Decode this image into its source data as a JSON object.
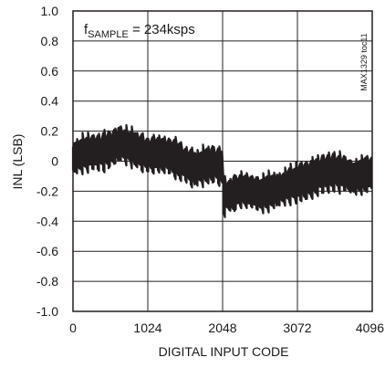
{
  "chart_data": {
    "type": "line",
    "title": "",
    "xlabel": "DIGITAL INPUT CODE",
    "ylabel": "INL (LSB)",
    "xlim": [
      0,
      4096
    ],
    "ylim": [
      -1.0,
      1.0
    ],
    "x_ticks": [
      0,
      1024,
      2048,
      3072,
      4096
    ],
    "x_tick_labels": [
      "0",
      "1024",
      "2048",
      "3072",
      "4096"
    ],
    "y_ticks": [
      1.0,
      0.8,
      0.6,
      0.4,
      0.2,
      0,
      -0.2,
      -0.4,
      -0.6,
      -0.8,
      -1.0
    ],
    "y_tick_labels": [
      "1.0",
      "0.8",
      "0.6",
      "0.4",
      "0.2",
      "0",
      "-0.2",
      "-0.4",
      "-0.6",
      "-0.8",
      "-1.0"
    ],
    "grid": true,
    "annotation": {
      "main": "f",
      "sub": "SAMPLE",
      "rest": " = 234ksps"
    },
    "side_code": "MAX1329 toc11",
    "series": [
      {
        "x": [
          0,
          128,
          256,
          384,
          512,
          640,
          768,
          896,
          1024,
          1152,
          1280,
          1408,
          1536,
          1664,
          1792,
          1920,
          2047,
          2049,
          2176,
          2304,
          2432,
          2560,
          2688,
          2816,
          2944,
          3072,
          3200,
          3328,
          3456,
          3584,
          3712,
          3840,
          3968,
          4095
        ],
        "y": [
          0.02,
          0.05,
          0.06,
          0.06,
          0.08,
          0.12,
          0.1,
          0.07,
          0.04,
          0.05,
          0.04,
          0.02,
          -0.02,
          -0.05,
          -0.03,
          -0.02,
          -0.04,
          -0.24,
          -0.22,
          -0.19,
          -0.2,
          -0.22,
          -0.2,
          -0.19,
          -0.16,
          -0.14,
          -0.13,
          -0.1,
          -0.08,
          -0.07,
          -0.08,
          -0.11,
          -0.09,
          -0.08
        ],
        "band_width": 0.28,
        "color": "#231f20"
      }
    ]
  }
}
